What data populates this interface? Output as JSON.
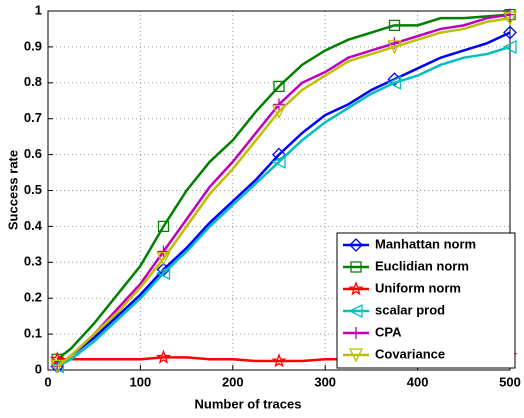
{
  "chart_data": {
    "type": "line",
    "x_label": "Number of traces",
    "y_label": "Success rate",
    "x": [
      10,
      25,
      50,
      75,
      100,
      125,
      150,
      175,
      200,
      225,
      250,
      275,
      300,
      325,
      350,
      375,
      400,
      425,
      450,
      475,
      500
    ],
    "series": [
      {
        "name": "Manhattan norm",
        "color": "#0000ff",
        "marker": "diamond",
        "values": [
          0.01,
          0.04,
          0.09,
          0.15,
          0.21,
          0.28,
          0.34,
          0.41,
          0.47,
          0.53,
          0.6,
          0.66,
          0.71,
          0.74,
          0.78,
          0.81,
          0.84,
          0.87,
          0.89,
          0.91,
          0.94
        ]
      },
      {
        "name": "Euclidian norm",
        "color": "#008000",
        "marker": "square",
        "values": [
          0.03,
          0.06,
          0.13,
          0.21,
          0.29,
          0.4,
          0.5,
          0.58,
          0.64,
          0.72,
          0.79,
          0.85,
          0.89,
          0.92,
          0.94,
          0.96,
          0.96,
          0.98,
          0.98,
          0.985,
          0.99
        ]
      },
      {
        "name": "Uniform norm",
        "color": "#ff0000",
        "marker": "pentagram",
        "values": [
          0.03,
          0.03,
          0.03,
          0.03,
          0.03,
          0.035,
          0.035,
          0.03,
          0.03,
          0.025,
          0.025,
          0.025,
          0.03,
          0.03,
          0.03,
          0.03,
          0.03,
          0.03,
          0.03,
          0.035,
          0.04
        ]
      },
      {
        "name": "scalar prod",
        "color": "#00bfbf",
        "marker": "left-triangle",
        "values": [
          0.01,
          0.03,
          0.08,
          0.14,
          0.2,
          0.27,
          0.33,
          0.4,
          0.46,
          0.52,
          0.58,
          0.64,
          0.69,
          0.73,
          0.77,
          0.8,
          0.82,
          0.85,
          0.87,
          0.88,
          0.9
        ]
      },
      {
        "name": "CPA",
        "color": "#bf00bf",
        "marker": "plus",
        "values": [
          0.01,
          0.04,
          0.1,
          0.17,
          0.24,
          0.33,
          0.42,
          0.51,
          0.58,
          0.66,
          0.74,
          0.8,
          0.83,
          0.87,
          0.89,
          0.91,
          0.93,
          0.95,
          0.96,
          0.98,
          0.99
        ]
      },
      {
        "name": "Covariance",
        "color": "#bfbf00",
        "marker": "down-triangle",
        "values": [
          0.01,
          0.04,
          0.1,
          0.16,
          0.23,
          0.31,
          0.4,
          0.49,
          0.56,
          0.64,
          0.72,
          0.78,
          0.82,
          0.86,
          0.88,
          0.9,
          0.92,
          0.94,
          0.95,
          0.97,
          0.98
        ]
      }
    ],
    "xlim": [
      0,
      500
    ],
    "xticks": [
      0,
      100,
      200,
      300,
      400,
      500
    ],
    "ylim": [
      0,
      1
    ],
    "yticks": [
      0,
      0.1,
      0.2,
      0.3,
      0.4,
      0.5,
      0.6,
      0.7,
      0.8,
      0.9,
      1
    ],
    "grid": true,
    "legend": "lower right"
  }
}
